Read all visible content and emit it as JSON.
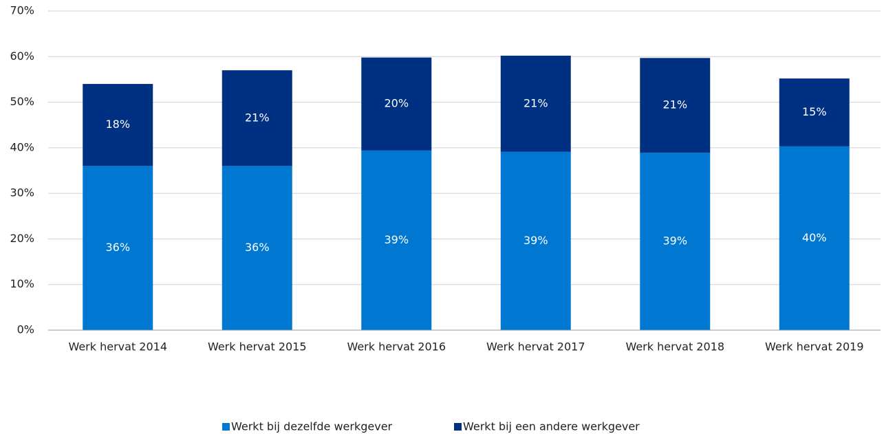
{
  "chart_data": {
    "type": "stacked_bar",
    "categories": [
      "Werk hervat 2014",
      "Werk hervat 2015",
      "Werk hervat 2016",
      "Werk hervat 2017",
      "Werk hervat 2018",
      "Werk hervat 2019"
    ],
    "series": [
      {
        "name": "Werkt bij dezelfde werkgever",
        "color": "#0078d2",
        "values": [
          36.0,
          36.0,
          39.4,
          39.1,
          38.9,
          40.3
        ],
        "value_labels": [
          "36%",
          "36%",
          "39%",
          "39%",
          "39%",
          "40%"
        ]
      },
      {
        "name": "Werkt bij een andere werkgever",
        "color": "#003082",
        "values": [
          18.0,
          21.0,
          20.4,
          21.1,
          20.8,
          14.9
        ],
        "value_labels": [
          "18%",
          "21%",
          "20%",
          "21%",
          "21%",
          "15%"
        ]
      }
    ],
    "ylim": [
      0,
      70
    ],
    "yticks": [
      {
        "value": 0,
        "label": "0%"
      },
      {
        "value": 10,
        "label": "10%"
      },
      {
        "value": 20,
        "label": "20%"
      },
      {
        "value": 30,
        "label": "30%"
      },
      {
        "value": 40,
        "label": "40%"
      },
      {
        "value": 50,
        "label": "50%"
      },
      {
        "value": 60,
        "label": "60%"
      },
      {
        "value": 70,
        "label": "70%"
      }
    ],
    "grid": true,
    "legend": "bottom"
  }
}
